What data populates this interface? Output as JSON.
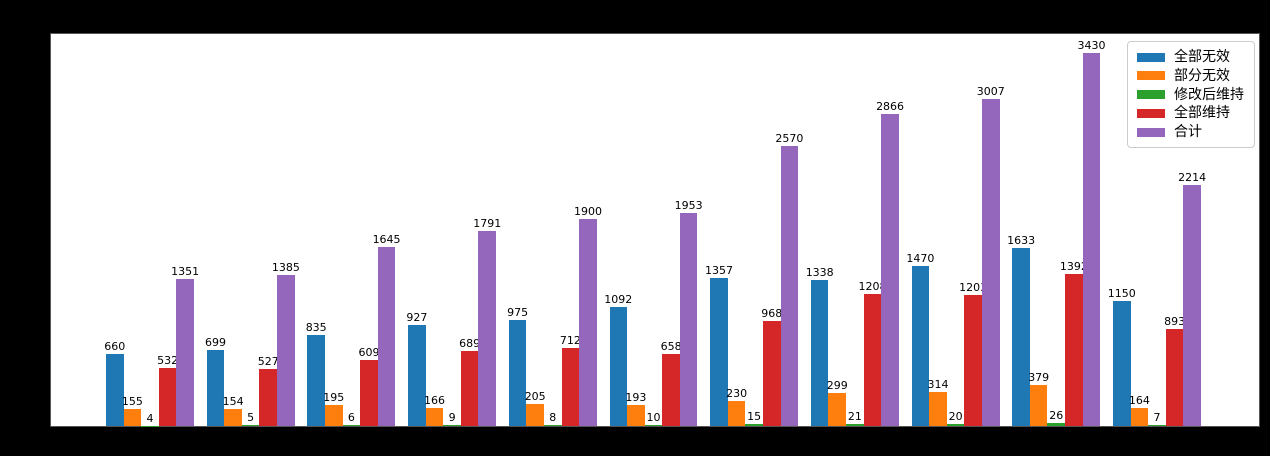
{
  "figure": {
    "background": "#000000",
    "plot_background": "#ffffff"
  },
  "chart_data": {
    "type": "bar",
    "title": "",
    "xlabel": "",
    "ylabel": "",
    "categories": [
      "",
      "",
      "",
      "",
      "",
      "",
      "",
      "",
      "",
      "",
      ""
    ],
    "series": [
      {
        "name": "全部无效",
        "color": "#1f77b4",
        "values": [
          660,
          699,
          835,
          927,
          975,
          1092,
          1357,
          1338,
          1470,
          1633,
          1150
        ]
      },
      {
        "name": "部分无效",
        "color": "#ff7f0e",
        "values": [
          155,
          154,
          195,
          166,
          205,
          193,
          230,
          299,
          314,
          379,
          164
        ]
      },
      {
        "name": "修改后维持",
        "color": "#2ca02c",
        "values": [
          4,
          5,
          6,
          9,
          8,
          10,
          15,
          21,
          20,
          26,
          7
        ]
      },
      {
        "name": "全部维持",
        "color": "#d62728",
        "values": [
          532,
          527,
          609,
          689,
          712,
          658,
          968,
          1208,
          1203,
          1392,
          893
        ]
      },
      {
        "name": "合计",
        "color": "#9467bd",
        "values": [
          1351,
          1385,
          1645,
          1791,
          1900,
          1953,
          2570,
          2866,
          3007,
          3430,
          2214
        ]
      }
    ],
    "ylim": [
      0,
      3600
    ],
    "grid": false,
    "legend_position": "upper-right",
    "bar_value_labels": true,
    "x_tick_labels_visible": false,
    "y_tick_labels_visible": false
  }
}
